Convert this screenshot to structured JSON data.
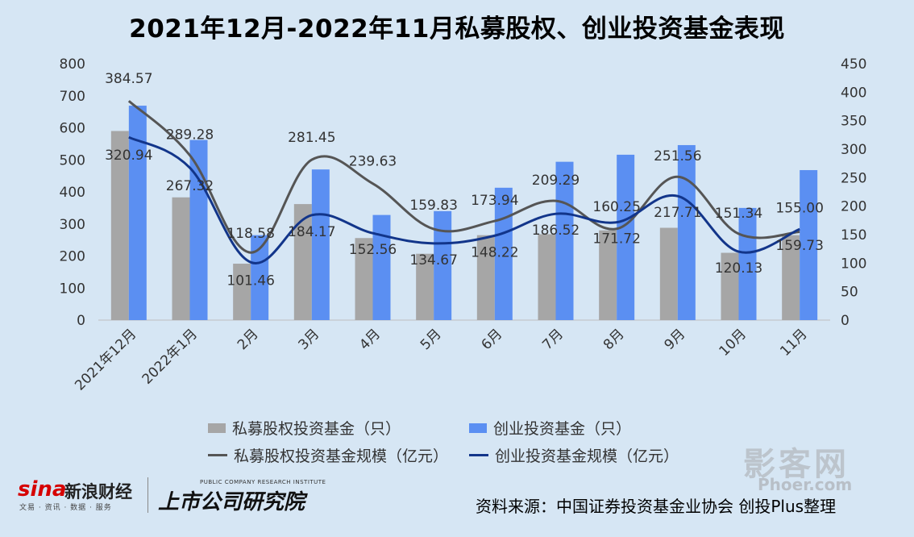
{
  "title": "2021年12月-2022年11月私募股权、创业投资基金表现",
  "chart_data": {
    "type": "bar+line",
    "categories": [
      "2021年12月",
      "2022年1月",
      "2月",
      "3月",
      "4月",
      "5月",
      "6月",
      "7月",
      "8月",
      "9月",
      "10月",
      "11月"
    ],
    "left_axis": {
      "min": 0,
      "max": 800,
      "ticks": [
        "0",
        "100",
        "200",
        "300",
        "400",
        "500",
        "600",
        "700",
        "800"
      ]
    },
    "right_axis": {
      "min": 0,
      "max": 450,
      "ticks": [
        "0",
        "50",
        "100",
        "150",
        "200",
        "250",
        "300",
        "350",
        "400",
        "450"
      ]
    },
    "series": [
      {
        "name": "私募股权投资基金（只）",
        "type": "bar",
        "axis": "left",
        "color": "#a6a6a6",
        "values": [
          590,
          383,
          176,
          362,
          256,
          207,
          265,
          268,
          280,
          288,
          210,
          265
        ]
      },
      {
        "name": "创业投资基金（只）",
        "type": "bar",
        "axis": "left",
        "color": "#5b8ff2",
        "values": [
          669,
          562,
          265,
          470,
          328,
          340,
          413,
          494,
          516,
          546,
          350,
          468
        ]
      },
      {
        "name": "私募股权投资基金规模（亿元）",
        "type": "line",
        "axis": "right",
        "color": "#555555",
        "values": [
          384.57,
          289.28,
          118.58,
          281.45,
          239.63,
          159.83,
          173.94,
          209.29,
          160.25,
          251.56,
          151.34,
          155.0
        ],
        "labels": [
          "384.57",
          "289.28",
          "118.58",
          "281.45",
          "239.63",
          "159.83",
          "173.94",
          "209.29",
          "160.25",
          "251.56",
          "151.34",
          "155.00"
        ]
      },
      {
        "name": "创业投资基金规模（亿元）",
        "type": "line",
        "axis": "right",
        "color": "#12358a",
        "values": [
          320.94,
          267.32,
          101.46,
          184.17,
          152.56,
          134.67,
          148.22,
          186.52,
          171.72,
          217.71,
          120.13,
          159.73
        ],
        "labels": [
          "320.94",
          "267.32",
          "101.46",
          "184.17",
          "152.56",
          "134.67",
          "148.22",
          "186.52",
          "171.72",
          "217.71",
          "120.13",
          "159.73"
        ]
      }
    ]
  },
  "legend": {
    "bar1": "私募股权投资基金（只）",
    "bar2": "创业投资基金（只）",
    "line1": "私募股权投资基金规模（亿元）",
    "line2": "创业投资基金规模（亿元）"
  },
  "colors": {
    "bar1": "#a6a6a6",
    "bar2": "#5b8ff2",
    "line1": "#555555",
    "line2": "#12358a"
  },
  "logos": {
    "sina_mark": "sina",
    "sina_name": "新浪财经",
    "sina_sub": "文易 · 资讯 · 数据 · 服务",
    "institute_en": "PUBLIC COMPANY RESEARCH INSTITUTE",
    "institute_cn": "上市公司研究院"
  },
  "watermark": {
    "cn": "影客网",
    "en": "Phoer.com"
  },
  "source": "资料来源：中国证券投资基金业协会 创投Plus整理"
}
